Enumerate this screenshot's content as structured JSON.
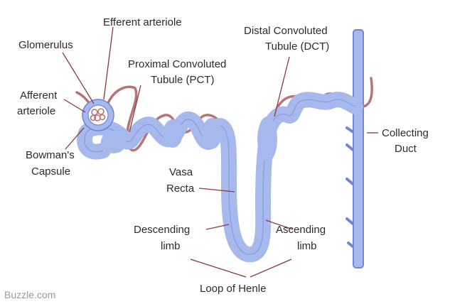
{
  "diagram": {
    "title": "",
    "labels": {
      "efferent_arteriole": "Efferent arteriole",
      "glomerulus": "Glomerulus",
      "afferent_arteriole_1": "Afferent",
      "afferent_arteriole_2": "arteriole",
      "bowmans_capsule_1": "Bowman's",
      "bowmans_capsule_2": "Capsule",
      "pct_1": "Proximal Convoluted",
      "pct_2": "Tubule (PCT)",
      "dct_1": "Distal Convoluted",
      "dct_2": "Tubule (DCT)",
      "collecting_duct_1": "Collecting",
      "collecting_duct_2": "Duct",
      "vasa_recta_1": "Vasa",
      "vasa_recta_2": "Recta",
      "descending_limb_1": "Descending",
      "descending_limb_2": "limb",
      "ascending_limb_1": "Ascending",
      "ascending_limb_2": "limb",
      "loop_of_henle": "Loop of Henle"
    },
    "watermark": "Buzzle.com",
    "colors": {
      "tubule_fill": "#a6b8ec",
      "tubule_stroke": "#6f86d6",
      "vessel": "#b77474",
      "leader": "#8a3a3a",
      "text": "#2b2b2b"
    }
  }
}
